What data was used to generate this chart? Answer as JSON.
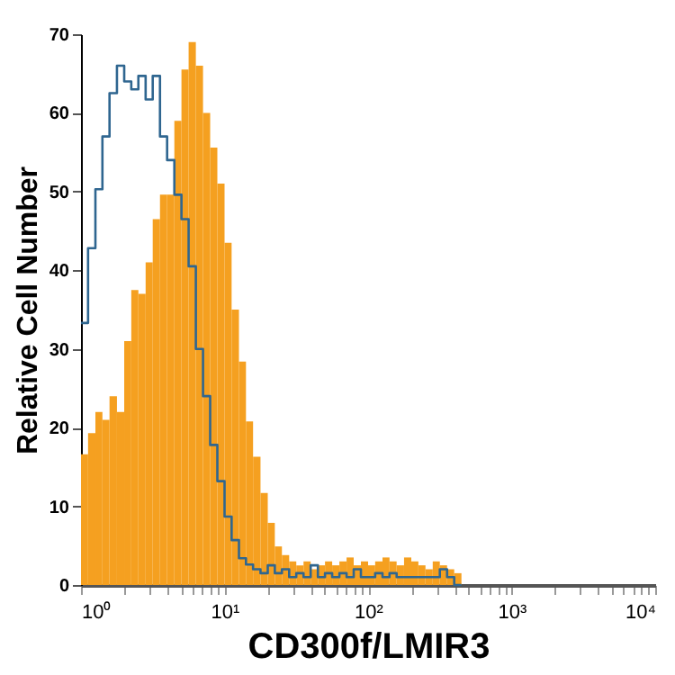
{
  "chart_data": {
    "type": "histogram",
    "xlabel": "CD300f/LMIR3",
    "ylabel": "Relative Cell Number",
    "log": "x",
    "grid": false,
    "bins": [
      1,
      1.12,
      1.26,
      1.41,
      1.58,
      1.78,
      2,
      2.24,
      2.51,
      2.82,
      3.16,
      3.55,
      3.98,
      4.47,
      5.01,
      5.62,
      6.31,
      7.08,
      7.94,
      8.91,
      10,
      11.2,
      12.6,
      14.1,
      15.8,
      17.8,
      20,
      22.4,
      25.1,
      28.2,
      31.6,
      35.5,
      39.8,
      44.7,
      50.1,
      56.2,
      63.1,
      70.8,
      79.4,
      89.1,
      100,
      112,
      126,
      141,
      158,
      178,
      200,
      224,
      251,
      282,
      316,
      355,
      398,
      447,
      501
    ],
    "series": [
      {
        "type": "histogram",
        "color": "#f5a020",
        "values": [
          16.6,
          19.3,
          22,
          21,
          24,
          22,
          31,
          37.5,
          37,
          41,
          46.5,
          49.6,
          49.6,
          59,
          65.5,
          69,
          66,
          60,
          55.6,
          51,
          43.5,
          35,
          28.4,
          20.8,
          16.3,
          11.7,
          7.9,
          4.9,
          3.8,
          3,
          2.5,
          3,
          2,
          2.5,
          3,
          2.5,
          3,
          3.5,
          2.5,
          3,
          2.5,
          3,
          3.5,
          3,
          2.5,
          3.5,
          3,
          2.5,
          2,
          3,
          2.5,
          2,
          1.5,
          0
        ]
      },
      {
        "type": "step",
        "color": "#2f6690",
        "x": [
          1,
          1.12,
          1.26,
          1.41,
          1.58,
          1.78,
          2,
          2.24,
          2.51,
          2.82,
          3.16,
          3.55,
          3.98,
          4.47,
          5.01,
          5.62,
          6.31,
          7.08,
          7.94,
          8.91,
          10,
          11.2,
          12.6,
          14.1,
          15.8,
          17.8,
          20,
          22.4,
          25.1,
          28.2,
          31.6,
          35.5,
          39.8,
          44.7,
          50.1,
          56.2,
          63.1,
          70.8,
          79.4,
          89.1,
          100,
          112,
          126,
          141,
          158,
          178,
          200,
          224,
          251,
          282,
          316,
          355,
          398,
          447
        ],
        "values": [
          33.3,
          42.8,
          50.3,
          57,
          62.5,
          66,
          64,
          63,
          64.7,
          61.7,
          64.7,
          57,
          54,
          49.6,
          46.5,
          40.5,
          30,
          24,
          17.8,
          13.2,
          8.7,
          5.7,
          3.4,
          2.6,
          2,
          1.5,
          2.5,
          1.5,
          2,
          1,
          1.5,
          1,
          2.5,
          1,
          1.5,
          1,
          1.5,
          1,
          2,
          1,
          1,
          1.5,
          1,
          1.5,
          1,
          1,
          1,
          1,
          1,
          1,
          2,
          1,
          0,
          0
        ]
      }
    ],
    "xlim": [
      1,
      10000
    ],
    "xticks": [
      {
        "value": 1,
        "label": "10⁰"
      },
      {
        "value": 2,
        "label": null
      },
      {
        "value": 3,
        "label": null
      },
      {
        "value": 4,
        "label": null
      },
      {
        "value": 5,
        "label": null
      },
      {
        "value": 6,
        "label": null
      },
      {
        "value": 7,
        "label": null
      },
      {
        "value": 8,
        "label": null
      },
      {
        "value": 9,
        "label": null
      },
      {
        "value": 10,
        "label": "10¹"
      },
      {
        "value": 20,
        "label": null
      },
      {
        "value": 30,
        "label": null
      },
      {
        "value": 40,
        "label": null
      },
      {
        "value": 50,
        "label": null
      },
      {
        "value": 60,
        "label": null
      },
      {
        "value": 70,
        "label": null
      },
      {
        "value": 80,
        "label": null
      },
      {
        "value": 90,
        "label": null
      },
      {
        "value": 100,
        "label": "10²"
      },
      {
        "value": 200,
        "label": null
      },
      {
        "value": 300,
        "label": null
      },
      {
        "value": 400,
        "label": null
      },
      {
        "value": 500,
        "label": null
      },
      {
        "value": 600,
        "label": null
      },
      {
        "value": 700,
        "label": null
      },
      {
        "value": 800,
        "label": null
      },
      {
        "value": 900,
        "label": null
      },
      {
        "value": 1000,
        "label": "10³"
      },
      {
        "value": 2000,
        "label": null
      },
      {
        "value": 3000,
        "label": null
      },
      {
        "value": 4000,
        "label": null
      },
      {
        "value": 5000,
        "label": null
      },
      {
        "value": 6000,
        "label": null
      },
      {
        "value": 7000,
        "label": null
      },
      {
        "value": 8000,
        "label": null
      },
      {
        "value": 9000,
        "label": null
      },
      {
        "value": 10000,
        "label": "10⁴"
      }
    ],
    "ylim": [
      0,
      70
    ],
    "yticks": [
      0,
      10,
      20,
      30,
      40,
      50,
      60,
      70
    ]
  }
}
